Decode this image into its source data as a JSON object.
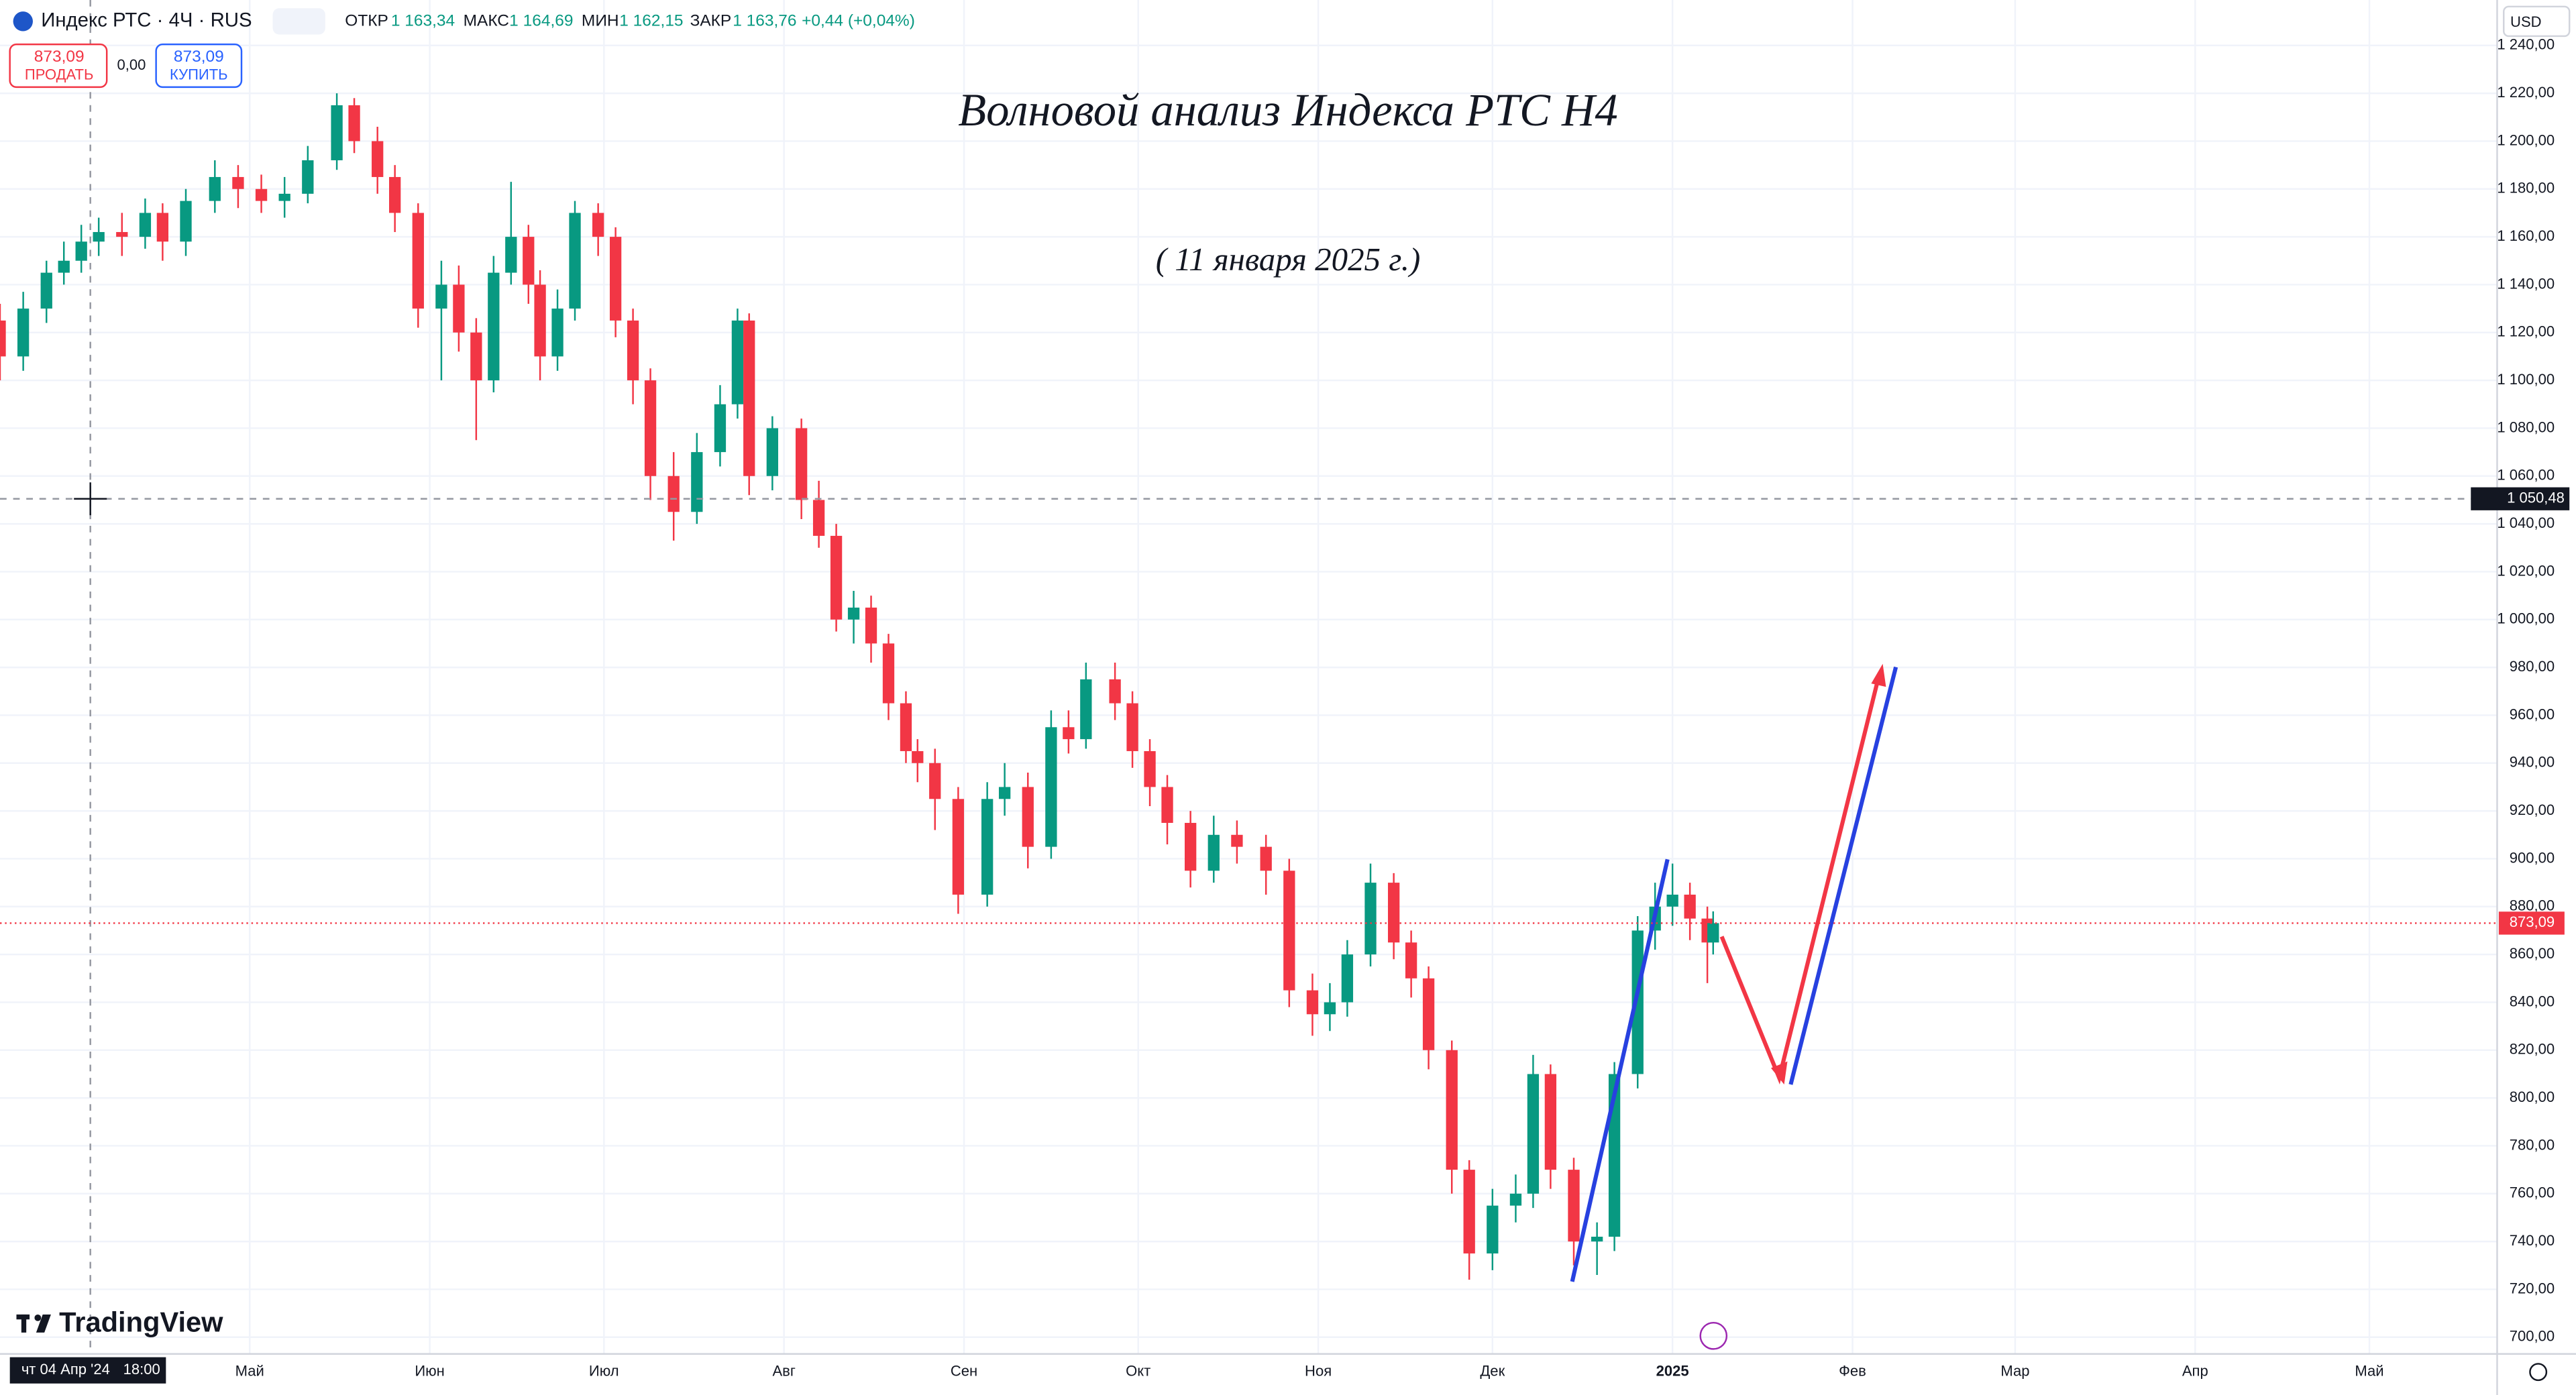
{
  "header": {
    "symbol": "Индекс РТС · 4Ч · RUS",
    "open_label": "ОТКР",
    "open": "1 163,34",
    "high_label": "МАКС",
    "high": "1 164,69",
    "low_label": "МИН",
    "low": "1 162,15",
    "close_label": "ЗАКР",
    "close": "1 163,76",
    "change": "+0,44 (+0,04%)",
    "sell_price": "873,09",
    "sell": "ПРОДАТЬ",
    "spread": "0,00",
    "buy_price": "873,09",
    "buy": "КУПИТЬ",
    "currency": "USD",
    "logo": "TradingView",
    "cursor_date": "чт 04 Апр '24",
    "cursor_time": "18:00"
  },
  "chart_data": {
    "type": "candlestick",
    "title": "Волновой анализ Индекса РТС Н4",
    "subtitle": "( 11 января 2025 г.)",
    "up_color": "#089981",
    "down_color": "#f23645",
    "grid": true,
    "x": [
      -13,
      -9,
      -5,
      -2,
      1,
      4,
      8,
      12,
      15,
      19,
      24,
      28,
      32,
      36,
      40,
      45,
      48,
      52,
      55,
      59,
      63,
      66,
      69,
      72,
      75,
      78,
      80,
      83,
      86,
      90,
      93,
      96,
      99,
      103,
      107,
      111,
      114,
      116,
      120,
      125,
      128,
      131,
      134,
      137,
      140,
      143,
      145,
      148,
      152,
      157,
      160,
      164,
      168,
      171,
      174,
      179,
      182,
      185,
      188,
      192,
      196,
      200,
      205,
      209,
      213,
      216,
      219,
      223,
      227,
      230,
      233,
      237,
      240,
      244,
      248,
      251,
      254,
      258,
      262,
      265,
      269,
      272,
      275,
      278,
      281,
      282
    ],
    "open": [
      1125,
      1110,
      1130,
      1145,
      1150,
      1158,
      1162,
      1160,
      1170,
      1158,
      1175,
      1185,
      1180,
      1175,
      1178,
      1192,
      1215,
      1200,
      1185,
      1170,
      1130,
      1140,
      1120,
      1100,
      1145,
      1160,
      1140,
      1110,
      1130,
      1170,
      1160,
      1125,
      1100,
      1060,
      1045,
      1070,
      1090,
      1125,
      1060,
      1080,
      1050,
      1035,
      1000,
      1005,
      990,
      965,
      945,
      940,
      925,
      885,
      925,
      930,
      905,
      955,
      950,
      975,
      965,
      945,
      930,
      915,
      895,
      910,
      905,
      895,
      845,
      835,
      840,
      860,
      890,
      865,
      850,
      820,
      770,
      735,
      755,
      760,
      810,
      770,
      740,
      742,
      810,
      870,
      880,
      885,
      875,
      865
    ],
    "high": [
      1132,
      1137,
      1150,
      1158,
      1165,
      1168,
      1170,
      1176,
      1174,
      1180,
      1192,
      1190,
      1186,
      1185,
      1198,
      1220,
      1218,
      1206,
      1190,
      1174,
      1150,
      1148,
      1126,
      1152,
      1183,
      1165,
      1146,
      1138,
      1175,
      1174,
      1164,
      1130,
      1105,
      1070,
      1078,
      1098,
      1130,
      1128,
      1085,
      1084,
      1058,
      1040,
      1012,
      1010,
      994,
      970,
      950,
      946,
      930,
      932,
      940,
      936,
      962,
      962,
      982,
      982,
      970,
      950,
      935,
      920,
      918,
      916,
      910,
      900,
      852,
      848,
      866,
      898,
      894,
      870,
      855,
      824,
      774,
      762,
      768,
      818,
      814,
      775,
      748,
      815,
      876,
      890,
      898,
      890,
      880,
      878
    ],
    "low": [
      1100,
      1104,
      1124,
      1140,
      1145,
      1152,
      1152,
      1155,
      1150,
      1152,
      1170,
      1172,
      1170,
      1168,
      1174,
      1188,
      1195,
      1178,
      1162,
      1122,
      1100,
      1112,
      1075,
      1095,
      1140,
      1132,
      1100,
      1104,
      1125,
      1152,
      1118,
      1090,
      1050,
      1033,
      1040,
      1064,
      1084,
      1052,
      1054,
      1042,
      1030,
      995,
      990,
      982,
      958,
      940,
      932,
      912,
      877,
      880,
      918,
      896,
      900,
      944,
      946,
      958,
      938,
      922,
      906,
      888,
      890,
      898,
      885,
      838,
      826,
      828,
      834,
      855,
      858,
      842,
      812,
      760,
      724,
      728,
      748,
      754,
      762,
      730,
      726,
      736,
      804,
      862,
      872,
      866,
      848,
      860
    ],
    "close": [
      1110,
      1130,
      1145,
      1150,
      1158,
      1162,
      1160,
      1170,
      1158,
      1175,
      1185,
      1180,
      1175,
      1178,
      1192,
      1215,
      1200,
      1185,
      1170,
      1130,
      1140,
      1120,
      1100,
      1145,
      1160,
      1140,
      1110,
      1130,
      1170,
      1160,
      1125,
      1100,
      1060,
      1045,
      1070,
      1090,
      1125,
      1060,
      1080,
      1050,
      1035,
      1000,
      1005,
      990,
      965,
      945,
      940,
      925,
      885,
      925,
      930,
      905,
      955,
      950,
      975,
      965,
      945,
      930,
      915,
      895,
      910,
      905,
      895,
      845,
      835,
      840,
      860,
      890,
      865,
      850,
      820,
      770,
      735,
      755,
      760,
      810,
      770,
      740,
      742,
      810,
      870,
      880,
      885,
      875,
      865,
      873.09
    ],
    "xlim": [
      -13,
      417
    ],
    "xticks": [
      {
        "value": 30,
        "label": "Май"
      },
      {
        "value": 61,
        "label": "Июн"
      },
      {
        "value": 91,
        "label": "Июл"
      },
      {
        "value": 122,
        "label": "Авг"
      },
      {
        "value": 153,
        "label": "Сен"
      },
      {
        "value": 183,
        "label": "Окт"
      },
      {
        "value": 214,
        "label": "Ноя"
      },
      {
        "value": 244,
        "label": "Дек"
      },
      {
        "value": 275,
        "label": "2025"
      },
      {
        "value": 306,
        "label": "Фев"
      },
      {
        "value": 334,
        "label": "Мар"
      },
      {
        "value": 365,
        "label": "Апр"
      },
      {
        "value": 395,
        "label": "Май"
      }
    ],
    "ylim": [
      693,
      1259
    ],
    "yticks": [
      {
        "value": 700,
        "label": "700,00"
      },
      {
        "value": 720,
        "label": "720,00"
      },
      {
        "value": 740,
        "label": "740,00"
      },
      {
        "value": 760,
        "label": "760,00"
      },
      {
        "value": 780,
        "label": "780,00"
      },
      {
        "value": 800,
        "label": "800,00"
      },
      {
        "value": 820,
        "label": "820,00"
      },
      {
        "value": 840,
        "label": "840,00"
      },
      {
        "value": 860,
        "label": "860,00"
      },
      {
        "value": 880,
        "label": "880,00"
      },
      {
        "value": 900,
        "label": "900,00"
      },
      {
        "value": 920,
        "label": "920,00"
      },
      {
        "value": 940,
        "label": "940,00"
      },
      {
        "value": 960,
        "label": "960,00"
      },
      {
        "value": 980,
        "label": "980,00"
      },
      {
        "value": 1000,
        "label": "1 000,00"
      },
      {
        "value": 1020,
        "label": "1 020,00"
      },
      {
        "value": 1040,
        "label": "1 040,00"
      },
      {
        "value": 1060,
        "label": "1 060,00"
      },
      {
        "value": 1080,
        "label": "1 080,00"
      },
      {
        "value": 1100,
        "label": "1 100,00"
      },
      {
        "value": 1120,
        "label": "1 120,00"
      },
      {
        "value": 1140,
        "label": "1 140,00"
      },
      {
        "value": 1160,
        "label": "1 160,00"
      },
      {
        "value": 1180,
        "label": "1 180,00"
      },
      {
        "value": 1200,
        "label": "1 200,00"
      },
      {
        "value": 1220,
        "label": "1 220,00"
      },
      {
        "value": 1240,
        "label": "1 240,00"
      }
    ],
    "last_price": {
      "value": 873.09,
      "label": "873,09"
    },
    "crosshair_price": {
      "value": 1050.48,
      "label": "1 050,48"
    }
  }
}
